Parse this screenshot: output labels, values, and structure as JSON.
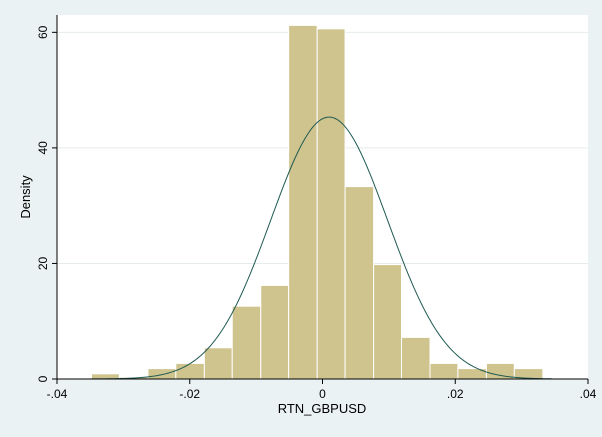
{
  "chart_data": {
    "type": "bar",
    "title": "",
    "xlabel": "RTN_GBPUSD",
    "ylabel": "Density",
    "xlim": [
      -0.04,
      0.04
    ],
    "ylim": [
      0,
      63
    ],
    "grid": true,
    "legend": "none",
    "x_ticks": [
      {
        "value": -0.04,
        "label": "-.04"
      },
      {
        "value": -0.02,
        "label": "-.02"
      },
      {
        "value": 0,
        "label": "0"
      },
      {
        "value": 0.02,
        "label": ".02"
      },
      {
        "value": 0.04,
        "label": ".04"
      }
    ],
    "y_ticks": [
      {
        "value": 0,
        "label": "0"
      },
      {
        "value": 20,
        "label": "20"
      },
      {
        "value": 40,
        "label": "40"
      },
      {
        "value": 60,
        "label": "60"
      }
    ],
    "bin_width": 0.00425,
    "bins": [
      {
        "x0": -0.0348,
        "x1": -0.0306,
        "density": 0.9
      },
      {
        "x0": -0.0306,
        "x1": -0.0263,
        "density": 0.3
      },
      {
        "x0": -0.0263,
        "x1": -0.0221,
        "density": 1.8
      },
      {
        "x0": -0.0221,
        "x1": -0.0178,
        "density": 2.7
      },
      {
        "x0": -0.0178,
        "x1": -0.0136,
        "density": 5.4
      },
      {
        "x0": -0.0136,
        "x1": -0.0093,
        "density": 12.6
      },
      {
        "x0": -0.0093,
        "x1": -0.0051,
        "density": 16.2
      },
      {
        "x0": -0.0051,
        "x1": -0.0008,
        "density": 61.2
      },
      {
        "x0": -0.0008,
        "x1": 0.0034,
        "density": 60.6
      },
      {
        "x0": 0.0034,
        "x1": 0.0077,
        "density": 33.3
      },
      {
        "x0": 0.0077,
        "x1": 0.0119,
        "density": 19.8
      },
      {
        "x0": 0.0119,
        "x1": 0.0162,
        "density": 7.2
      },
      {
        "x0": 0.0162,
        "x1": 0.0204,
        "density": 2.7
      },
      {
        "x0": 0.0204,
        "x1": 0.0247,
        "density": 1.8
      },
      {
        "x0": 0.0247,
        "x1": 0.0289,
        "density": 2.7
      },
      {
        "x0": 0.0289,
        "x1": 0.0332,
        "density": 1.8
      }
    ],
    "normal_curve": {
      "mean": 0.001,
      "sd": 0.0088
    },
    "colors": {
      "background": "#eaf2f3",
      "plot_background": "#ffffff",
      "bar_fill": "#cfc38e",
      "bar_stroke": "#ffffff",
      "curve": "#1f5a52",
      "grid": "#e6ecee",
      "axis": "#000000"
    }
  }
}
